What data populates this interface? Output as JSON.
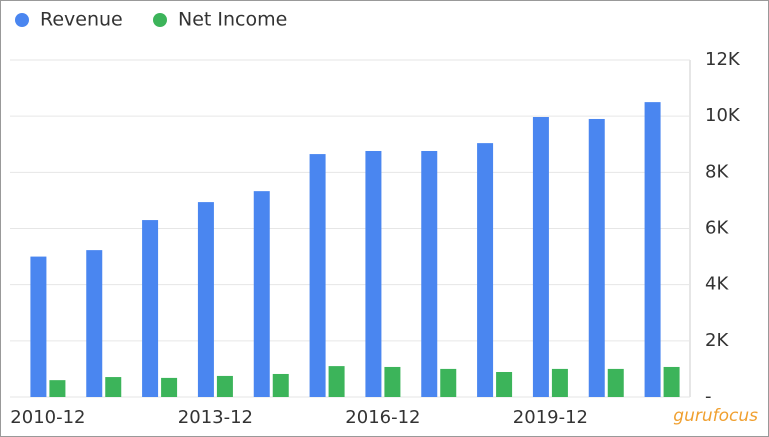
{
  "chart_data": {
    "type": "bar",
    "categories": [
      "2010-12",
      null,
      null,
      "2013-12",
      null,
      null,
      "2016-12",
      null,
      null,
      "2019-12",
      null,
      null
    ],
    "series": [
      {
        "name": "Revenue",
        "color": "#4a86f0",
        "values": [
          5000,
          5230,
          6300,
          6940,
          7330,
          8650,
          8760,
          8760,
          9040,
          9970,
          9900,
          10500
        ]
      },
      {
        "name": "Net Income",
        "color": "#3cb45a",
        "values": [
          600,
          710,
          680,
          750,
          820,
          1100,
          1070,
          1000,
          890,
          1000,
          1000,
          1070
        ]
      }
    ],
    "ylim": [
      0,
      12000
    ],
    "yticks": [
      {
        "value": 0,
        "label": "-"
      },
      {
        "value": 2000,
        "label": "2K"
      },
      {
        "value": 4000,
        "label": "4K"
      },
      {
        "value": 6000,
        "label": "6K"
      },
      {
        "value": 8000,
        "label": "8K"
      },
      {
        "value": 10000,
        "label": "10K"
      },
      {
        "value": 12000,
        "label": "12K"
      }
    ],
    "grid": true,
    "legend": "top-left",
    "watermark": "gurufocus"
  }
}
